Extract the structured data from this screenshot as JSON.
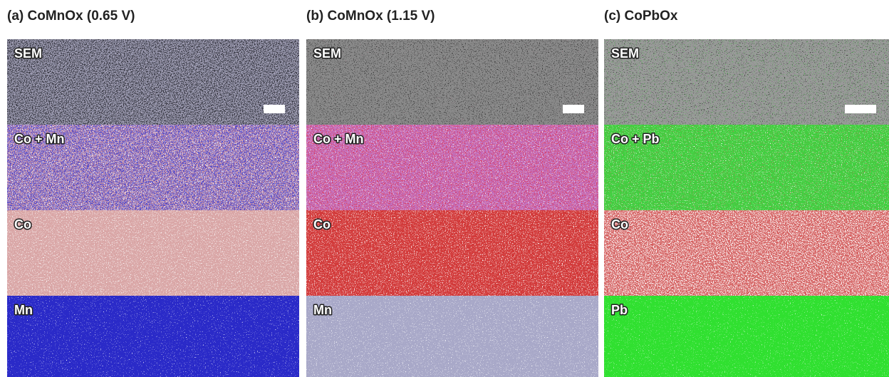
{
  "panels": [
    {
      "title": "(a) CoMnOx (0.65 V)",
      "rows": [
        "SEM",
        "Co + Mn",
        "Co",
        "Mn"
      ]
    },
    {
      "title": "(b) CoMnOx (1.15 V)",
      "rows": [
        "SEM",
        "Co + Mn",
        "Co",
        "Mn"
      ]
    },
    {
      "title": "(c) CoPbOx",
      "rows": [
        "SEM",
        "Co + Pb",
        "Co",
        "Pb"
      ]
    }
  ]
}
